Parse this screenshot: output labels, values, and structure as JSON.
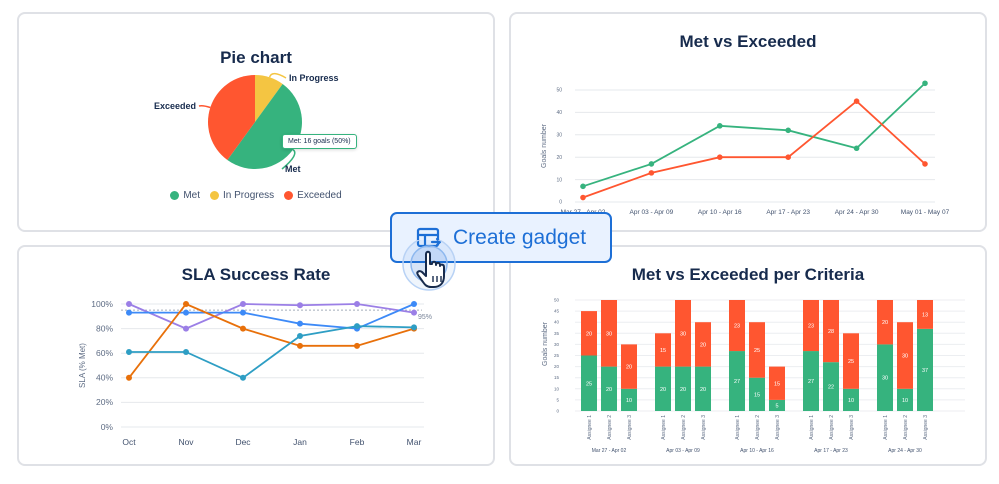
{
  "create_gadget": {
    "label": "Create gadget"
  },
  "chart_data": [
    {
      "id": "pie",
      "type": "pie",
      "title": "Pie chart",
      "slices": [
        {
          "label": "Met",
          "value": 50,
          "color": "#36b37e"
        },
        {
          "label": "In Progress",
          "value": 10,
          "color": "#f4c542"
        },
        {
          "label": "Exceeded",
          "value": 40,
          "color": "#ff5630"
        }
      ],
      "legend": [
        "Met",
        "In Progress",
        "Exceeded"
      ],
      "legend_position": "bottom",
      "tooltip": "Met: 16 goals (50%)"
    },
    {
      "id": "line",
      "type": "line",
      "title": "Met vs Exceeded",
      "ylabel": "Goals number",
      "categories": [
        "Mar 27 - Apr 02",
        "Apr 03 - Apr 09",
        "Apr 10 - Apr 16",
        "Apr 17 - Apr 23",
        "Apr 24 - Apr 30",
        "May 01 - May 07"
      ],
      "yticks": [
        0,
        10,
        20,
        30,
        40,
        50
      ],
      "ylim": [
        0,
        50
      ],
      "series": [
        {
          "values": [
            7,
            17,
            34,
            32,
            24,
            53
          ],
          "color": "#36b37e"
        },
        {
          "values": [
            2,
            13,
            20,
            20,
            45,
            17
          ],
          "color": "#ff5630"
        }
      ]
    },
    {
      "id": "sla",
      "type": "line",
      "title": "SLA Success Rate",
      "ylabel": "SLA (% Met)",
      "categories": [
        "Oct",
        "Nov",
        "Dec",
        "Jan",
        "Feb",
        "Mar"
      ],
      "yticks": [
        "0%",
        "20%",
        "40%",
        "60%",
        "80%",
        "100%"
      ],
      "ylim": [
        0,
        100
      ],
      "target_label": "95%",
      "target": 95,
      "series": [
        {
          "values": [
            100,
            80,
            100,
            99,
            100,
            93
          ],
          "color": "#9b7fe6"
        },
        {
          "values": [
            93,
            93,
            93,
            84,
            80,
            100
          ],
          "color": "#3d8af7"
        },
        {
          "values": [
            40,
            100,
            80,
            66,
            66,
            80
          ],
          "color": "#e8700a"
        },
        {
          "values": [
            61,
            61,
            40,
            74,
            82,
            81
          ],
          "color": "#2e9ec4"
        }
      ]
    },
    {
      "id": "bar",
      "type": "bar",
      "title": "Met vs Exceeded per Criteria",
      "ylabel": "Goals number",
      "yticks": [
        0,
        5,
        10,
        15,
        20,
        25,
        30,
        35,
        40,
        45,
        50
      ],
      "ylim": [
        0,
        50
      ],
      "groups": [
        "Mar 27 - Apr 02",
        "Apr 03 - Apr 09",
        "Apr 10 - Apr 16",
        "Apr 17 - Apr 23",
        "Apr 24 - Apr 30"
      ],
      "categories": [
        "Assignee 1",
        "Assignee 2",
        "Assignee 3"
      ],
      "stacks": [
        [
          [
            25,
            20
          ],
          [
            20,
            30
          ],
          [
            10,
            20
          ]
        ],
        [
          [
            20,
            15
          ],
          [
            20,
            30
          ],
          [
            20,
            20
          ]
        ],
        [
          [
            27,
            23
          ],
          [
            15,
            25
          ],
          [
            5,
            15
          ]
        ],
        [
          [
            27,
            23
          ],
          [
            22,
            28
          ],
          [
            10,
            25
          ]
        ],
        [
          [
            30,
            20
          ],
          [
            10,
            30
          ],
          [
            37,
            13
          ]
        ]
      ],
      "colors": {
        "met": "#36b37e",
        "exceeded": "#ff5630"
      }
    }
  ]
}
